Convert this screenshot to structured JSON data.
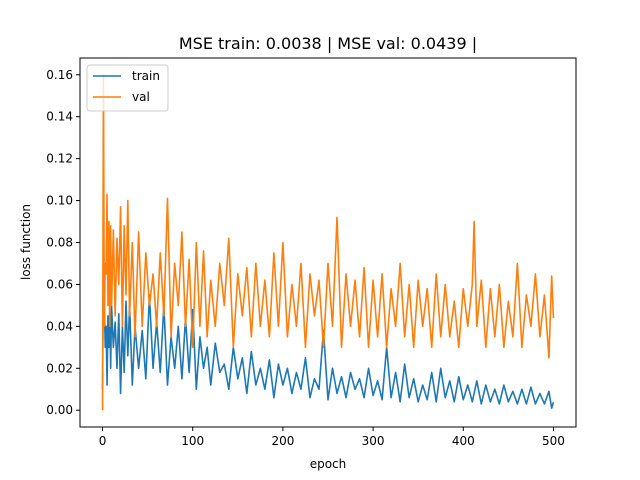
{
  "chart_data": {
    "type": "line",
    "title": "MSE train: 0.0038 | MSE val: 0.0439 |",
    "xlabel": "epoch",
    "ylabel": "loss function",
    "xlim": [
      -25,
      525
    ],
    "ylim": [
      -0.008,
      0.168
    ],
    "xticks": [
      0,
      100,
      200,
      300,
      400,
      500
    ],
    "yticks": [
      0.0,
      0.02,
      0.04,
      0.06,
      0.08,
      0.1,
      0.12,
      0.14,
      0.16
    ],
    "ytick_labels": [
      "0.00",
      "0.02",
      "0.04",
      "0.06",
      "0.08",
      "0.10",
      "0.12",
      "0.14",
      "0.16"
    ],
    "grid": false,
    "legend_position": "upper left",
    "series": [
      {
        "name": "train",
        "color": "#1f77b4",
        "x": [
          0,
          1,
          2,
          3,
          4,
          5,
          6,
          7,
          8,
          9,
          10,
          12,
          14,
          16,
          18,
          20,
          22,
          24,
          26,
          28,
          30,
          33,
          36,
          40,
          44,
          48,
          52,
          56,
          60,
          64,
          68,
          72,
          76,
          80,
          84,
          88,
          92,
          96,
          100,
          104,
          108,
          112,
          116,
          120,
          125,
          130,
          135,
          140,
          145,
          150,
          155,
          160,
          165,
          170,
          175,
          180,
          185,
          190,
          195,
          200,
          205,
          210,
          215,
          220,
          225,
          230,
          235,
          240,
          245,
          250,
          255,
          260,
          265,
          270,
          275,
          280,
          285,
          290,
          295,
          300,
          305,
          310,
          315,
          320,
          325,
          330,
          335,
          340,
          345,
          350,
          355,
          360,
          365,
          370,
          375,
          380,
          385,
          390,
          395,
          400,
          405,
          410,
          415,
          420,
          425,
          430,
          435,
          440,
          445,
          450,
          455,
          460,
          465,
          470,
          475,
          480,
          485,
          490,
          495,
          498,
          500
        ],
        "values": [
          0.01,
          0.072,
          0.05,
          0.03,
          0.04,
          0.012,
          0.045,
          0.03,
          0.049,
          0.02,
          0.05,
          0.03,
          0.042,
          0.02,
          0.046,
          0.008,
          0.04,
          0.018,
          0.052,
          0.026,
          0.05,
          0.012,
          0.04,
          0.02,
          0.038,
          0.015,
          0.055,
          0.02,
          0.042,
          0.018,
          0.05,
          0.012,
          0.035,
          0.02,
          0.04,
          0.015,
          0.044,
          0.018,
          0.048,
          0.01,
          0.035,
          0.02,
          0.03,
          0.012,
          0.032,
          0.018,
          0.022,
          0.01,
          0.03,
          0.015,
          0.025,
          0.008,
          0.028,
          0.012,
          0.02,
          0.01,
          0.024,
          0.006,
          0.022,
          0.012,
          0.02,
          0.008,
          0.018,
          0.01,
          0.025,
          0.006,
          0.015,
          0.01,
          0.038,
          0.005,
          0.02,
          0.008,
          0.016,
          0.006,
          0.018,
          0.01,
          0.015,
          0.006,
          0.02,
          0.007,
          0.014,
          0.005,
          0.03,
          0.006,
          0.018,
          0.004,
          0.022,
          0.006,
          0.015,
          0.004,
          0.012,
          0.005,
          0.018,
          0.004,
          0.02,
          0.006,
          0.014,
          0.004,
          0.016,
          0.005,
          0.012,
          0.004,
          0.014,
          0.003,
          0.012,
          0.004,
          0.01,
          0.003,
          0.012,
          0.004,
          0.009,
          0.003,
          0.01,
          0.003,
          0.011,
          0.003,
          0.008,
          0.003,
          0.009,
          0.001,
          0.0038
        ]
      },
      {
        "name": "val",
        "color": "#ff7f0e",
        "x": [
          0,
          1,
          2,
          3,
          4,
          5,
          6,
          7,
          8,
          9,
          10,
          12,
          14,
          16,
          18,
          20,
          22,
          24,
          26,
          28,
          30,
          33,
          36,
          40,
          44,
          48,
          52,
          56,
          60,
          64,
          68,
          72,
          76,
          80,
          84,
          88,
          92,
          96,
          100,
          104,
          108,
          112,
          116,
          120,
          125,
          130,
          135,
          140,
          145,
          150,
          155,
          160,
          165,
          170,
          175,
          180,
          185,
          190,
          195,
          200,
          205,
          210,
          215,
          220,
          225,
          230,
          235,
          240,
          245,
          250,
          255,
          260,
          265,
          270,
          275,
          280,
          285,
          290,
          295,
          300,
          305,
          310,
          315,
          320,
          325,
          330,
          335,
          340,
          345,
          350,
          355,
          360,
          365,
          370,
          375,
          380,
          385,
          390,
          395,
          400,
          405,
          410,
          412,
          415,
          420,
          425,
          430,
          435,
          440,
          445,
          450,
          455,
          460,
          465,
          470,
          475,
          480,
          485,
          490,
          495,
          498,
          500
        ],
        "values": [
          0.0,
          0.16,
          0.04,
          0.07,
          0.065,
          0.103,
          0.05,
          0.09,
          0.04,
          0.088,
          0.05,
          0.086,
          0.045,
          0.082,
          0.06,
          0.097,
          0.04,
          0.088,
          0.055,
          0.1,
          0.045,
          0.08,
          0.035,
          0.085,
          0.04,
          0.075,
          0.05,
          0.065,
          0.04,
          0.075,
          0.045,
          0.101,
          0.035,
          0.07,
          0.05,
          0.085,
          0.04,
          0.072,
          0.03,
          0.08,
          0.04,
          0.076,
          0.035,
          0.062,
          0.04,
          0.07,
          0.05,
          0.082,
          0.03,
          0.065,
          0.045,
          0.068,
          0.035,
          0.07,
          0.04,
          0.062,
          0.035,
          0.075,
          0.04,
          0.08,
          0.035,
          0.06,
          0.04,
          0.07,
          0.03,
          0.065,
          0.045,
          0.062,
          0.03,
          0.07,
          0.04,
          0.092,
          0.03,
          0.065,
          0.04,
          0.062,
          0.035,
          0.068,
          0.03,
          0.062,
          0.035,
          0.065,
          0.03,
          0.058,
          0.04,
          0.07,
          0.035,
          0.06,
          0.03,
          0.062,
          0.04,
          0.058,
          0.03,
          0.065,
          0.035,
          0.06,
          0.035,
          0.052,
          0.03,
          0.058,
          0.04,
          0.06,
          0.09,
          0.04,
          0.062,
          0.03,
          0.058,
          0.035,
          0.06,
          0.03,
          0.052,
          0.035,
          0.07,
          0.03,
          0.055,
          0.04,
          0.065,
          0.035,
          0.055,
          0.025,
          0.064,
          0.0439
        ]
      }
    ]
  }
}
